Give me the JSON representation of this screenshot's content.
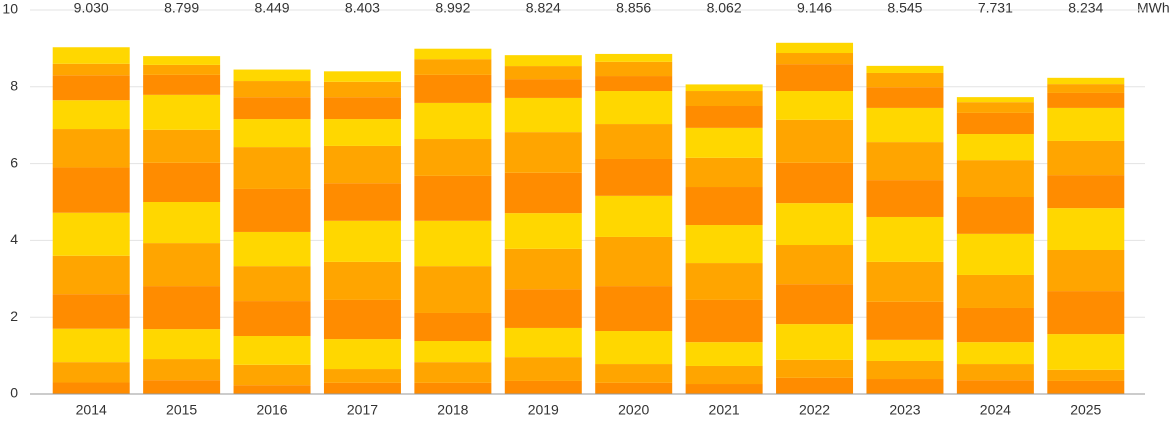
{
  "chart_data": {
    "type": "stacked_bar",
    "y_label": "MWh",
    "categories": [
      "2014",
      "2015",
      "2016",
      "2017",
      "2018",
      "2019",
      "2020",
      "2021",
      "2022",
      "2023",
      "2024",
      "2025"
    ],
    "ylim": [
      0,
      10
    ],
    "yticks": [
      0,
      2,
      4,
      6,
      8,
      10
    ],
    "grid": true,
    "series": [
      {
        "color": "#ff8c00",
        "values": [
          0.3,
          0.36,
          0.23,
          0.29,
          0.29,
          0.34,
          0.29,
          0.26,
          0.42,
          0.39,
          0.36,
          0.34
        ]
      },
      {
        "color": "#ffa500",
        "values": [
          0.53,
          0.55,
          0.53,
          0.36,
          0.54,
          0.62,
          0.49,
          0.47,
          0.47,
          0.47,
          0.42,
          0.29
        ]
      },
      {
        "color": "#ffd700",
        "values": [
          0.87,
          0.78,
          0.75,
          0.78,
          0.55,
          0.76,
          0.86,
          0.62,
          0.93,
          0.55,
          0.57,
          0.93
        ]
      },
      {
        "color": "#ff8c00",
        "values": [
          0.9,
          1.12,
          0.91,
          1.02,
          0.73,
          1.01,
          1.17,
          1.1,
          1.04,
          0.99,
          0.89,
          1.12
        ]
      },
      {
        "color": "#ffa500",
        "values": [
          1.0,
          1.12,
          0.91,
          0.99,
          1.22,
          1.05,
          1.28,
          0.96,
          1.02,
          1.04,
          0.86,
          1.07
        ]
      },
      {
        "color": "#ffd700",
        "values": [
          1.12,
          1.07,
          0.89,
          1.07,
          1.18,
          0.93,
          1.07,
          0.99,
          1.09,
          1.17,
          1.07,
          1.09
        ]
      },
      {
        "color": "#ff8c00",
        "values": [
          1.18,
          1.02,
          1.12,
          0.98,
          1.17,
          1.05,
          0.96,
          0.99,
          1.05,
          0.96,
          0.96,
          0.86
        ]
      },
      {
        "color": "#ffa500",
        "values": [
          1.0,
          0.86,
          1.09,
          0.97,
          0.96,
          1.06,
          0.91,
          0.76,
          1.12,
          0.99,
          0.96,
          0.89
        ]
      },
      {
        "color": "#ffd700",
        "values": [
          0.75,
          0.91,
          0.73,
          0.7,
          0.94,
          0.89,
          0.86,
          0.78,
          0.75,
          0.89,
          0.68,
          0.86
        ]
      },
      {
        "color": "#ff8c00",
        "values": [
          0.65,
          0.52,
          0.57,
          0.57,
          0.73,
          0.49,
          0.39,
          0.57,
          0.7,
          0.54,
          0.55,
          0.39
        ]
      },
      {
        "color": "#ffa500",
        "values": [
          0.3,
          0.26,
          0.42,
          0.4,
          0.41,
          0.34,
          0.37,
          0.39,
          0.29,
          0.37,
          0.28,
          0.23
        ]
      },
      {
        "color": "#ffd700",
        "values": [
          0.43,
          0.229,
          0.299,
          0.273,
          0.272,
          0.284,
          0.206,
          0.172,
          0.266,
          0.185,
          0.131,
          0.164
        ]
      }
    ],
    "totals": {
      "values": [
        9.03,
        8.799,
        8.449,
        8.403,
        8.992,
        8.824,
        8.856,
        8.062,
        9.146,
        8.545,
        7.731,
        8.234
      ],
      "value_labels": [
        "9.030",
        "8.799",
        "8.449",
        "8.403",
        "8.992",
        "8.824",
        "8.856",
        "8.062",
        "9.146",
        "8.545",
        "7.731",
        "8.234"
      ]
    }
  }
}
